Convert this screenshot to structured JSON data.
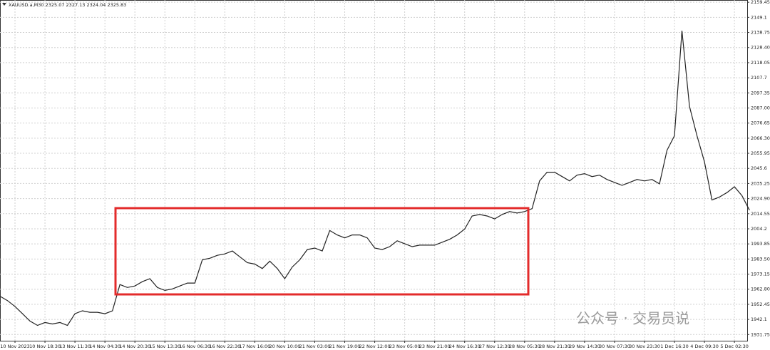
{
  "chart_data": {
    "type": "line",
    "title": "XAUUSD.a,M30  2325.07 2327.13 2324.04 2325.83",
    "watermark": "公众号 · 交易员说",
    "categories": [
      null,
      null,
      "10 Nov 2023",
      null,
      null,
      null,
      "10 Nov 18:30",
      null,
      null,
      null,
      "13 Nov 11:30",
      null,
      null,
      null,
      "14 Nov 04:30",
      null,
      null,
      null,
      "14 Nov 20:30",
      null,
      null,
      null,
      "15 Nov 13:30",
      null,
      null,
      null,
      "16 Nov 06:30",
      null,
      null,
      null,
      "16 Nov 22:30",
      null,
      null,
      null,
      "17 Nov 16:00",
      null,
      null,
      null,
      "20 Nov 10:00",
      null,
      null,
      null,
      "21 Nov 03:00",
      null,
      null,
      null,
      "21 Nov 19:00",
      null,
      null,
      null,
      "22 Nov 12:00",
      null,
      null,
      null,
      "23 Nov 05:00",
      null,
      null,
      null,
      "23 Nov 21:00",
      null,
      null,
      null,
      "24 Nov 16:30",
      null,
      null,
      null,
      "27 Nov 12:30",
      null,
      null,
      null,
      "28 Nov 05:30",
      null,
      null,
      null,
      "28 Nov 21:30",
      null,
      null,
      null,
      "29 Nov 14:30",
      null,
      null,
      null,
      "30 Nov 07:30",
      null,
      null,
      null,
      "30 Nov 23:30",
      null,
      null,
      null,
      "1 Dec 16:30",
      null,
      null,
      null,
      "4 Dec 09:30",
      null,
      null,
      null,
      "5 Dec 02:30",
      null,
      null
    ],
    "series": [
      {
        "color": "#222222",
        "values": [
          1958,
          1955,
          1951,
          1946,
          1941,
          1938,
          1940,
          1939,
          1940,
          1938,
          1946,
          1948,
          1947,
          1947,
          1946,
          1948,
          1966,
          1964,
          1965,
          1968,
          1970,
          1964,
          1962,
          1963,
          1965,
          1967,
          1967,
          1983,
          1984,
          1986,
          1987,
          1989,
          1985,
          1981,
          1980,
          1977,
          1982,
          1977,
          1970,
          1978,
          1983,
          1990,
          1991,
          1989,
          2003,
          2000,
          1998,
          2000,
          2000,
          1998,
          1991,
          1990,
          1992,
          1996,
          1994,
          1992,
          1993,
          1993,
          1993,
          1995,
          1997,
          2000,
          2004,
          2013,
          2014,
          2013,
          2011,
          2014,
          2016,
          2015,
          2016,
          2018,
          2037,
          2043,
          2043,
          2040,
          2037,
          2041,
          2042,
          2040,
          2041,
          2038,
          2036,
          2034,
          2036,
          2038,
          2037,
          2038,
          2035,
          2058,
          2068,
          2140,
          2088,
          2068,
          2050,
          2024,
          2026,
          2029,
          2033,
          2027,
          2017
        ]
      }
    ],
    "ylim": [
      1927.5,
      2161
    ],
    "yticks": [
      2159.45,
      2149.1,
      2138.75,
      {
        "value": 2128.4,
        "label": "2128.40"
      },
      2118.05,
      2107.7,
      2097.35,
      {
        "value": 2087,
        "label": "2087.00"
      },
      2076.65,
      {
        "value": 2066.3,
        "label": "2066.30"
      },
      2055.95,
      2045.6,
      2035.25,
      {
        "value": 2024.9,
        "label": "2024.90"
      },
      2014.55,
      2004.2,
      1993.85,
      {
        "value": 1983.5,
        "label": "1983.50"
      },
      1973.15,
      {
        "value": 1962.8,
        "label": "1962.80"
      },
      1952.45,
      1942.1,
      1931.75
    ],
    "grid": true
  }
}
